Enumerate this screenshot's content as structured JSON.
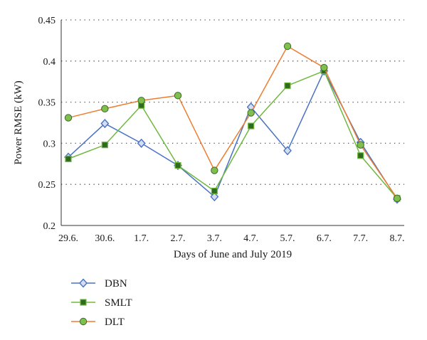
{
  "chart_data": {
    "type": "line",
    "title": "",
    "xlabel": "Days of June and July 2019",
    "ylabel": "Power RMSE (kW)",
    "categories": [
      "29.6.",
      "30.6.",
      "1.7.",
      "2.7.",
      "3.7.",
      "4.7.",
      "5.7.",
      "6.7.",
      "7.7.",
      "8.7."
    ],
    "yticks": [
      "0.2",
      "0.25",
      "0.3",
      "0.35",
      "0.4",
      "0.45"
    ],
    "ylim": [
      0.2,
      0.45
    ],
    "grid": "horizontal dotted",
    "legend_position": "bottom-left, below plot",
    "series": [
      {
        "name": "DBN",
        "color": "#4a72c4",
        "marker": "diamond",
        "marker_fill": "#d5def1",
        "values": [
          0.283,
          0.324,
          0.3,
          0.273,
          0.235,
          0.344,
          0.291,
          0.388,
          0.301,
          0.232
        ]
      },
      {
        "name": "SMLT",
        "color": "#6fb83f",
        "marker": "square",
        "marker_fill": "#2f6a1e",
        "values": [
          0.281,
          0.298,
          0.346,
          0.273,
          0.242,
          0.321,
          0.37,
          0.388,
          0.285,
          0.233
        ]
      },
      {
        "name": "DLT",
        "color": "#ed7d31",
        "marker": "circle",
        "marker_fill": "#7fbf4d",
        "values": [
          0.331,
          0.342,
          0.352,
          0.358,
          0.267,
          0.337,
          0.418,
          0.392,
          0.298,
          0.233
        ]
      }
    ]
  }
}
